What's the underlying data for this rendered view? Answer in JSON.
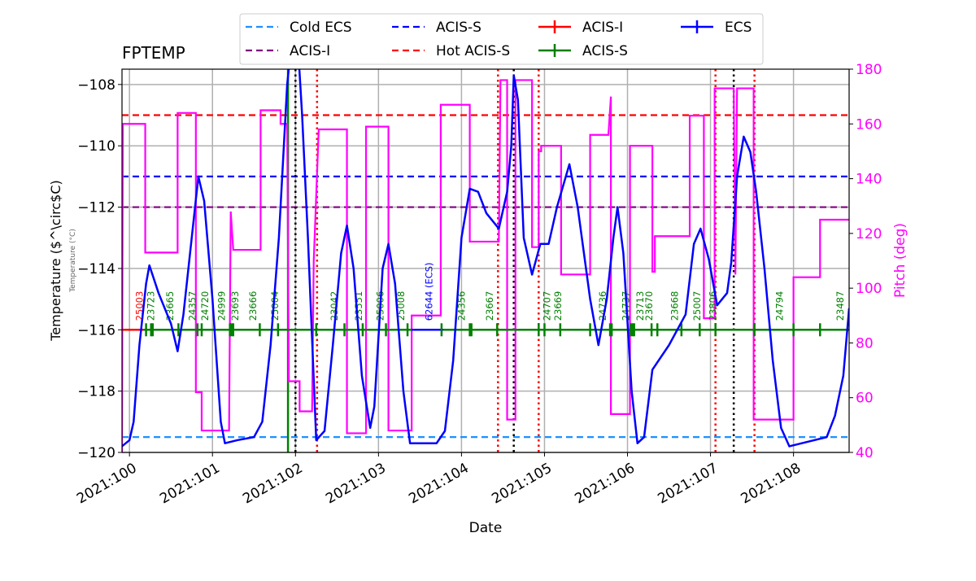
{
  "chart_data": {
    "type": "line",
    "title": "FPTEMP",
    "xlabel": "Date",
    "ylabel": "Temperature ($^\\circ$C)",
    "ylabel_display": "Temperature (°C)",
    "y2label": "Pitch (deg)",
    "xlim": [
      99.91,
      108.67
    ],
    "ylim": [
      -120,
      -107.5
    ],
    "y2lim": [
      40,
      180
    ],
    "grid": true,
    "legend_placement": "top-center",
    "xticks": [
      100,
      101,
      102,
      103,
      104,
      105,
      106,
      107,
      108
    ],
    "xtick_labels": [
      "2021:100",
      "2021:101",
      "2021:102",
      "2021:103",
      "2021:104",
      "2021:105",
      "2021:106",
      "2021:107",
      "2021:108"
    ],
    "yticks": [
      -120,
      -118,
      -116,
      -114,
      -112,
      -110,
      -108
    ],
    "ytick_labels": [
      "−120",
      "−118",
      "−116",
      "−114",
      "−112",
      "−110",
      "−108"
    ],
    "y2ticks": [
      40,
      60,
      80,
      100,
      120,
      140,
      160,
      180
    ],
    "y2tick_labels": [
      "40",
      "60",
      "80",
      "100",
      "120",
      "140",
      "160",
      "180"
    ],
    "colors": {
      "temp": "#0000ff",
      "pitch": "#ff00ff",
      "cold_ecs": "#1e90ff",
      "acis_i": "#800080",
      "acis_s": "#0000ff",
      "hot_acis_s": "#ff0000",
      "obs_acis_i": "#ff0000",
      "obs_acis_s": "#008000",
      "obs_ecs": "#0000ff"
    },
    "limits": [
      {
        "name": "Cold ECS",
        "value": -119.5,
        "color": "#1e90ff"
      },
      {
        "name": "ACIS-I",
        "value": -112,
        "color": "#800080"
      },
      {
        "name": "ACIS-S",
        "value": -111,
        "color": "#0000ff"
      },
      {
        "name": "Hot ACIS-S",
        "value": -109,
        "color": "#ff0000"
      }
    ],
    "legend": [
      {
        "label": "Cold ECS",
        "style": "dashed",
        "color": "#1e90ff"
      },
      {
        "label": "ACIS-I",
        "style": "dashed",
        "color": "#800080"
      },
      {
        "label": "ACIS-S",
        "style": "dashed",
        "color": "#0000ff"
      },
      {
        "label": "Hot ACIS-S",
        "style": "dashed",
        "color": "#ff0000"
      },
      {
        "label": "ACIS-I",
        "style": "errbar",
        "color": "#ff0000"
      },
      {
        "label": "ACIS-S",
        "style": "errbar",
        "color": "#008000"
      },
      {
        "label": "ECS",
        "style": "errbar",
        "color": "#0000ff"
      }
    ],
    "temperature": [
      [
        99.91,
        -119.8
      ],
      [
        100.0,
        -119.6
      ],
      [
        100.05,
        -119.0
      ],
      [
        100.12,
        -116.5
      ],
      [
        100.2,
        -114.5
      ],
      [
        100.24,
        -113.9
      ],
      [
        100.35,
        -114.8
      ],
      [
        100.5,
        -115.8
      ],
      [
        100.58,
        -116.7
      ],
      [
        100.65,
        -115.5
      ],
      [
        100.75,
        -113
      ],
      [
        100.83,
        -111.0
      ],
      [
        100.9,
        -111.8
      ],
      [
        101.0,
        -115
      ],
      [
        101.1,
        -119.0
      ],
      [
        101.15,
        -119.7
      ],
      [
        101.3,
        -119.6
      ],
      [
        101.5,
        -119.5
      ],
      [
        101.6,
        -119
      ],
      [
        101.7,
        -116.5
      ],
      [
        101.8,
        -113
      ],
      [
        101.9,
        -108
      ],
      [
        101.93,
        -107.2
      ],
      [
        102.04,
        -107.2
      ],
      [
        102.08,
        -109
      ],
      [
        102.15,
        -113
      ],
      [
        102.25,
        -119.6
      ],
      [
        102.35,
        -119.3
      ],
      [
        102.45,
        -116.5
      ],
      [
        102.55,
        -113.5
      ],
      [
        102.62,
        -112.6
      ],
      [
        102.7,
        -114
      ],
      [
        102.8,
        -117.5
      ],
      [
        102.9,
        -119.2
      ],
      [
        102.95,
        -118.5
      ],
      [
        103.05,
        -114
      ],
      [
        103.12,
        -113.2
      ],
      [
        103.2,
        -114.5
      ],
      [
        103.3,
        -118
      ],
      [
        103.38,
        -119.7
      ],
      [
        103.7,
        -119.7
      ],
      [
        103.8,
        -119.3
      ],
      [
        103.9,
        -117
      ],
      [
        104.0,
        -113
      ],
      [
        104.1,
        -111.4
      ],
      [
        104.2,
        -111.5
      ],
      [
        104.3,
        -112.2
      ],
      [
        104.45,
        -112.7
      ],
      [
        104.55,
        -111.5
      ],
      [
        104.6,
        -110
      ],
      [
        104.63,
        -107.7
      ],
      [
        104.68,
        -108.5
      ],
      [
        104.75,
        -113
      ],
      [
        104.85,
        -114.2
      ],
      [
        104.95,
        -113.2
      ],
      [
        105.05,
        -113.2
      ],
      [
        105.15,
        -112
      ],
      [
        105.3,
        -110.6
      ],
      [
        105.4,
        -112
      ],
      [
        105.55,
        -115
      ],
      [
        105.65,
        -116.5
      ],
      [
        105.75,
        -115
      ],
      [
        105.83,
        -113
      ],
      [
        105.88,
        -112
      ],
      [
        105.95,
        -113.5
      ],
      [
        106.05,
        -118
      ],
      [
        106.12,
        -119.7
      ],
      [
        106.2,
        -119.5
      ],
      [
        106.3,
        -117.3
      ],
      [
        106.5,
        -116.5
      ],
      [
        106.7,
        -115.5
      ],
      [
        106.8,
        -113.2
      ],
      [
        106.88,
        -112.7
      ],
      [
        106.98,
        -113.7
      ],
      [
        107.08,
        -115.2
      ],
      [
        107.2,
        -114.8
      ],
      [
        107.25,
        -113.8
      ],
      [
        107.32,
        -111
      ],
      [
        107.4,
        -109.7
      ],
      [
        107.48,
        -110.2
      ],
      [
        107.55,
        -111.5
      ],
      [
        107.65,
        -114
      ],
      [
        107.75,
        -117
      ],
      [
        107.85,
        -119.2
      ],
      [
        107.95,
        -119.8
      ],
      [
        108.1,
        -119.7
      ],
      [
        108.4,
        -119.5
      ],
      [
        108.5,
        -118.8
      ],
      [
        108.6,
        -117.5
      ],
      [
        108.67,
        -115.3
      ]
    ],
    "pitch": [
      [
        99.91,
        40
      ],
      [
        99.92,
        160
      ],
      [
        100.19,
        160
      ],
      [
        100.19,
        113
      ],
      [
        100.58,
        113
      ],
      [
        100.58,
        164
      ],
      [
        100.8,
        164
      ],
      [
        100.8,
        62
      ],
      [
        100.87,
        62
      ],
      [
        100.87,
        48
      ],
      [
        101.2,
        48
      ],
      [
        101.22,
        128
      ],
      [
        101.25,
        114
      ],
      [
        101.58,
        114
      ],
      [
        101.58,
        165
      ],
      [
        101.82,
        165
      ],
      [
        101.82,
        160
      ],
      [
        101.9,
        160
      ],
      [
        101.92,
        66
      ],
      [
        102.05,
        66
      ],
      [
        102.05,
        55
      ],
      [
        102.2,
        55
      ],
      [
        102.22,
        110
      ],
      [
        102.28,
        158
      ],
      [
        102.62,
        158
      ],
      [
        102.62,
        47
      ],
      [
        102.85,
        47
      ],
      [
        102.85,
        159
      ],
      [
        103.12,
        159
      ],
      [
        103.12,
        48
      ],
      [
        103.4,
        48
      ],
      [
        103.4,
        90
      ],
      [
        103.75,
        90
      ],
      [
        103.75,
        167
      ],
      [
        104.1,
        167
      ],
      [
        104.1,
        117
      ],
      [
        104.45,
        117
      ],
      [
        104.47,
        176
      ],
      [
        104.55,
        176
      ],
      [
        104.55,
        52
      ],
      [
        104.65,
        52
      ],
      [
        104.65,
        176
      ],
      [
        104.85,
        176
      ],
      [
        104.85,
        115
      ],
      [
        104.93,
        115
      ],
      [
        104.93,
        150
      ],
      [
        104.96,
        150
      ],
      [
        104.96,
        152
      ],
      [
        105.2,
        152
      ],
      [
        105.2,
        105
      ],
      [
        105.55,
        105
      ],
      [
        105.55,
        156
      ],
      [
        105.77,
        156
      ],
      [
        105.8,
        170
      ],
      [
        105.8,
        54
      ],
      [
        106.03,
        54
      ],
      [
        106.03,
        152
      ],
      [
        106.3,
        152
      ],
      [
        106.3,
        106
      ],
      [
        106.33,
        106
      ],
      [
        106.33,
        119
      ],
      [
        106.75,
        119
      ],
      [
        106.75,
        163
      ],
      [
        106.92,
        163
      ],
      [
        106.92,
        89
      ],
      [
        107.05,
        89
      ],
      [
        107.05,
        173
      ],
      [
        107.28,
        173
      ],
      [
        107.3,
        105
      ],
      [
        107.32,
        173
      ],
      [
        107.52,
        173
      ],
      [
        107.52,
        52
      ],
      [
        108.0,
        52
      ],
      [
        108.0,
        104
      ],
      [
        108.32,
        104
      ],
      [
        108.32,
        125
      ],
      [
        108.67,
        125
      ]
    ],
    "vlines": [
      {
        "day": 101.91,
        "color": "#008000",
        "style": "solid"
      },
      {
        "day": 102.0,
        "color": "#000000",
        "style": "dotted"
      },
      {
        "day": 102.26,
        "color": "#ff0000",
        "style": "dotted"
      },
      {
        "day": 104.44,
        "color": "#ff0000",
        "style": "dotted"
      },
      {
        "day": 104.63,
        "color": "#000000",
        "style": "dotted"
      },
      {
        "day": 104.93,
        "color": "#ff0000",
        "style": "dotted"
      },
      {
        "day": 107.06,
        "color": "#ff0000",
        "style": "dotted"
      },
      {
        "day": 107.28,
        "color": "#000000",
        "style": "dotted"
      },
      {
        "day": 107.53,
        "color": "#ff0000",
        "style": "dotted"
      }
    ],
    "obsid_level": -116,
    "obs_segments": [
      {
        "start": 99.91,
        "end": 100.17,
        "color": "#ff0000"
      },
      {
        "start": 100.17,
        "end": 103.4,
        "color": "#008000"
      },
      {
        "start": 103.4,
        "end": 103.78,
        "color": "#0000ff"
      },
      {
        "start": 103.78,
        "end": 108.67,
        "color": "#008000"
      }
    ],
    "obs_ticks": [
      100.2,
      100.26,
      100.28,
      100.59,
      100.82,
      100.87,
      101.21,
      101.23,
      101.25,
      101.57,
      101.79,
      102.25,
      102.59,
      102.81,
      103.09,
      103.35,
      103.76,
      104.1,
      104.12,
      104.43,
      104.93,
      105.0,
      105.19,
      105.55,
      105.79,
      105.81,
      106.04,
      106.06,
      106.08,
      106.29,
      106.36,
      106.65,
      106.87,
      107.06,
      107.53,
      108.0,
      108.32
    ],
    "obsids": [
      {
        "label": "25003",
        "day": 100.11,
        "color": "#ff0000"
      },
      {
        "label": "23723",
        "day": 100.25,
        "color": "#008000"
      },
      {
        "label": "23665",
        "day": 100.48,
        "color": "#008000"
      },
      {
        "label": "24357",
        "day": 100.75,
        "color": "#008000"
      },
      {
        "label": "24720",
        "day": 100.9,
        "color": "#008000"
      },
      {
        "label": "24999",
        "day": 101.1,
        "color": "#008000"
      },
      {
        "label": "23693",
        "day": 101.26,
        "color": "#008000"
      },
      {
        "label": "23666",
        "day": 101.48,
        "color": "#008000"
      },
      {
        "label": "25004",
        "day": 101.74,
        "color": "#008000"
      },
      {
        "label": "23042",
        "day": 102.46,
        "color": "#008000"
      },
      {
        "label": "23551",
        "day": 102.75,
        "color": "#008000"
      },
      {
        "label": "25006",
        "day": 103.01,
        "color": "#008000"
      },
      {
        "label": "25008",
        "day": 103.26,
        "color": "#008000"
      },
      {
        "label": "62644 (ECS)",
        "day": 103.6,
        "color": "#0000ff"
      },
      {
        "label": "24356",
        "day": 103.99,
        "color": "#008000"
      },
      {
        "label": "23667",
        "day": 104.33,
        "color": "#008000"
      },
      {
        "label": "24707",
        "day": 105.02,
        "color": "#008000"
      },
      {
        "label": "23669",
        "day": 105.15,
        "color": "#008000"
      },
      {
        "label": "24736",
        "day": 105.69,
        "color": "#008000"
      },
      {
        "label": "24737",
        "day": 105.97,
        "color": "#008000"
      },
      {
        "label": "23713",
        "day": 106.14,
        "color": "#008000"
      },
      {
        "label": "23670",
        "day": 106.25,
        "color": "#008000"
      },
      {
        "label": "23668",
        "day": 106.56,
        "color": "#008000"
      },
      {
        "label": "25007",
        "day": 106.83,
        "color": "#008000"
      },
      {
        "label": "23806",
        "day": 107.02,
        "color": "#008000"
      },
      {
        "label": "24794",
        "day": 107.82,
        "color": "#008000"
      },
      {
        "label": "23487",
        "day": 108.55,
        "color": "#008000"
      }
    ]
  }
}
